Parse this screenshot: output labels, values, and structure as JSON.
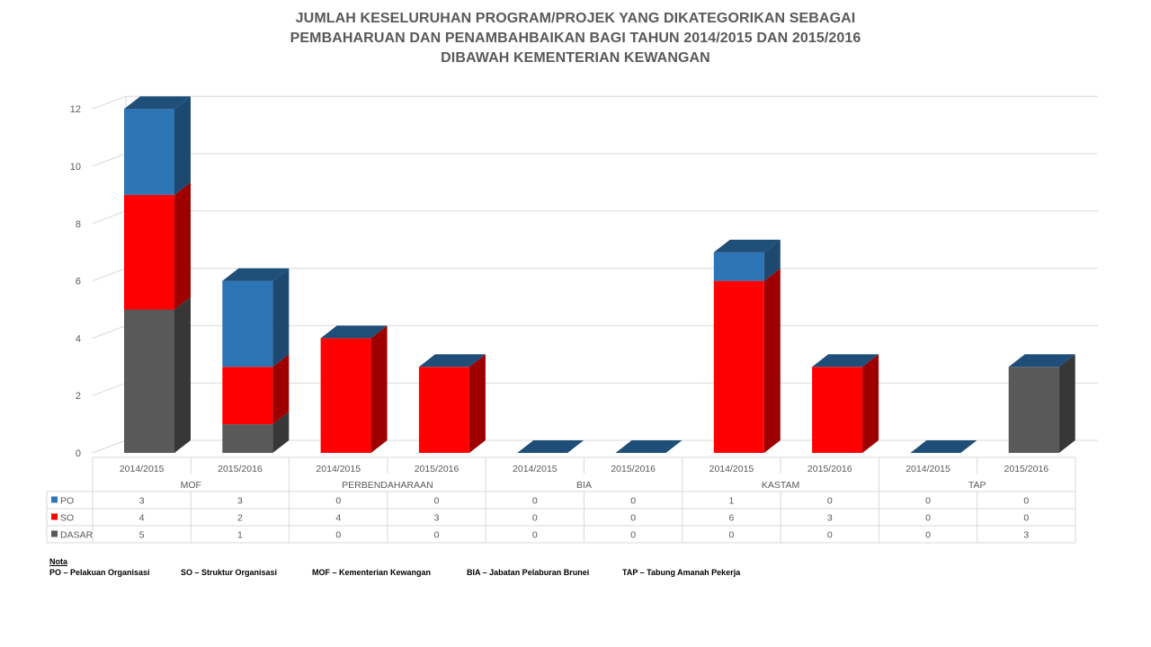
{
  "title_lines": [
    "JUMLAH KESELURUHAN PROGRAM/PROJEK YANG DIKATEGORIKAN SEBAGAI",
    "PEMBAHARUAN DAN PENAMBAHBAIKAN BAGI TAHUN 2014/2015 DAN 2015/2016",
    "DIBAWAH KEMENTERIAN KEWANGAN"
  ],
  "colors": {
    "PO": "#2e75b6",
    "SO": "#ff0000",
    "DASAR": "#595959",
    "zero_top": "#1f4e79",
    "grid": "#d9d9d9",
    "axis_text": "#595959"
  },
  "chart_data": {
    "type": "bar",
    "stacked": true,
    "three_d": true,
    "ylim": [
      0,
      12
    ],
    "y_ticks": [
      "0",
      "2",
      "4",
      "6",
      "8",
      "10",
      "12"
    ],
    "groups": [
      "MOF",
      "PERBENDAHARAAN",
      "BIA",
      "KASTAM",
      "TAP"
    ],
    "categories": [
      "2014/2015",
      "2015/2016",
      "2014/2015",
      "2015/2016",
      "2014/2015",
      "2015/2016",
      "2014/2015",
      "2015/2016",
      "2014/2015",
      "2015/2016"
    ],
    "series": [
      {
        "name": "PO",
        "values": [
          3,
          3,
          0,
          0,
          0,
          0,
          1,
          0,
          0,
          0
        ]
      },
      {
        "name": "SO",
        "values": [
          4,
          2,
          4,
          3,
          0,
          0,
          6,
          3,
          0,
          0
        ]
      },
      {
        "name": "DASAR",
        "values": [
          5,
          1,
          0,
          0,
          0,
          0,
          0,
          0,
          0,
          3
        ]
      }
    ],
    "grid": true,
    "data_table": true
  },
  "notes": {
    "heading": "Nota",
    "items": [
      "PO – Pelakuan Organisasi",
      "SO – Struktur Organisasi",
      "MOF – Kementerian Kewangan",
      "BIA – Jabatan Pelaburan Brunei",
      "TAP – Tabung Amanah Pekerja"
    ]
  }
}
